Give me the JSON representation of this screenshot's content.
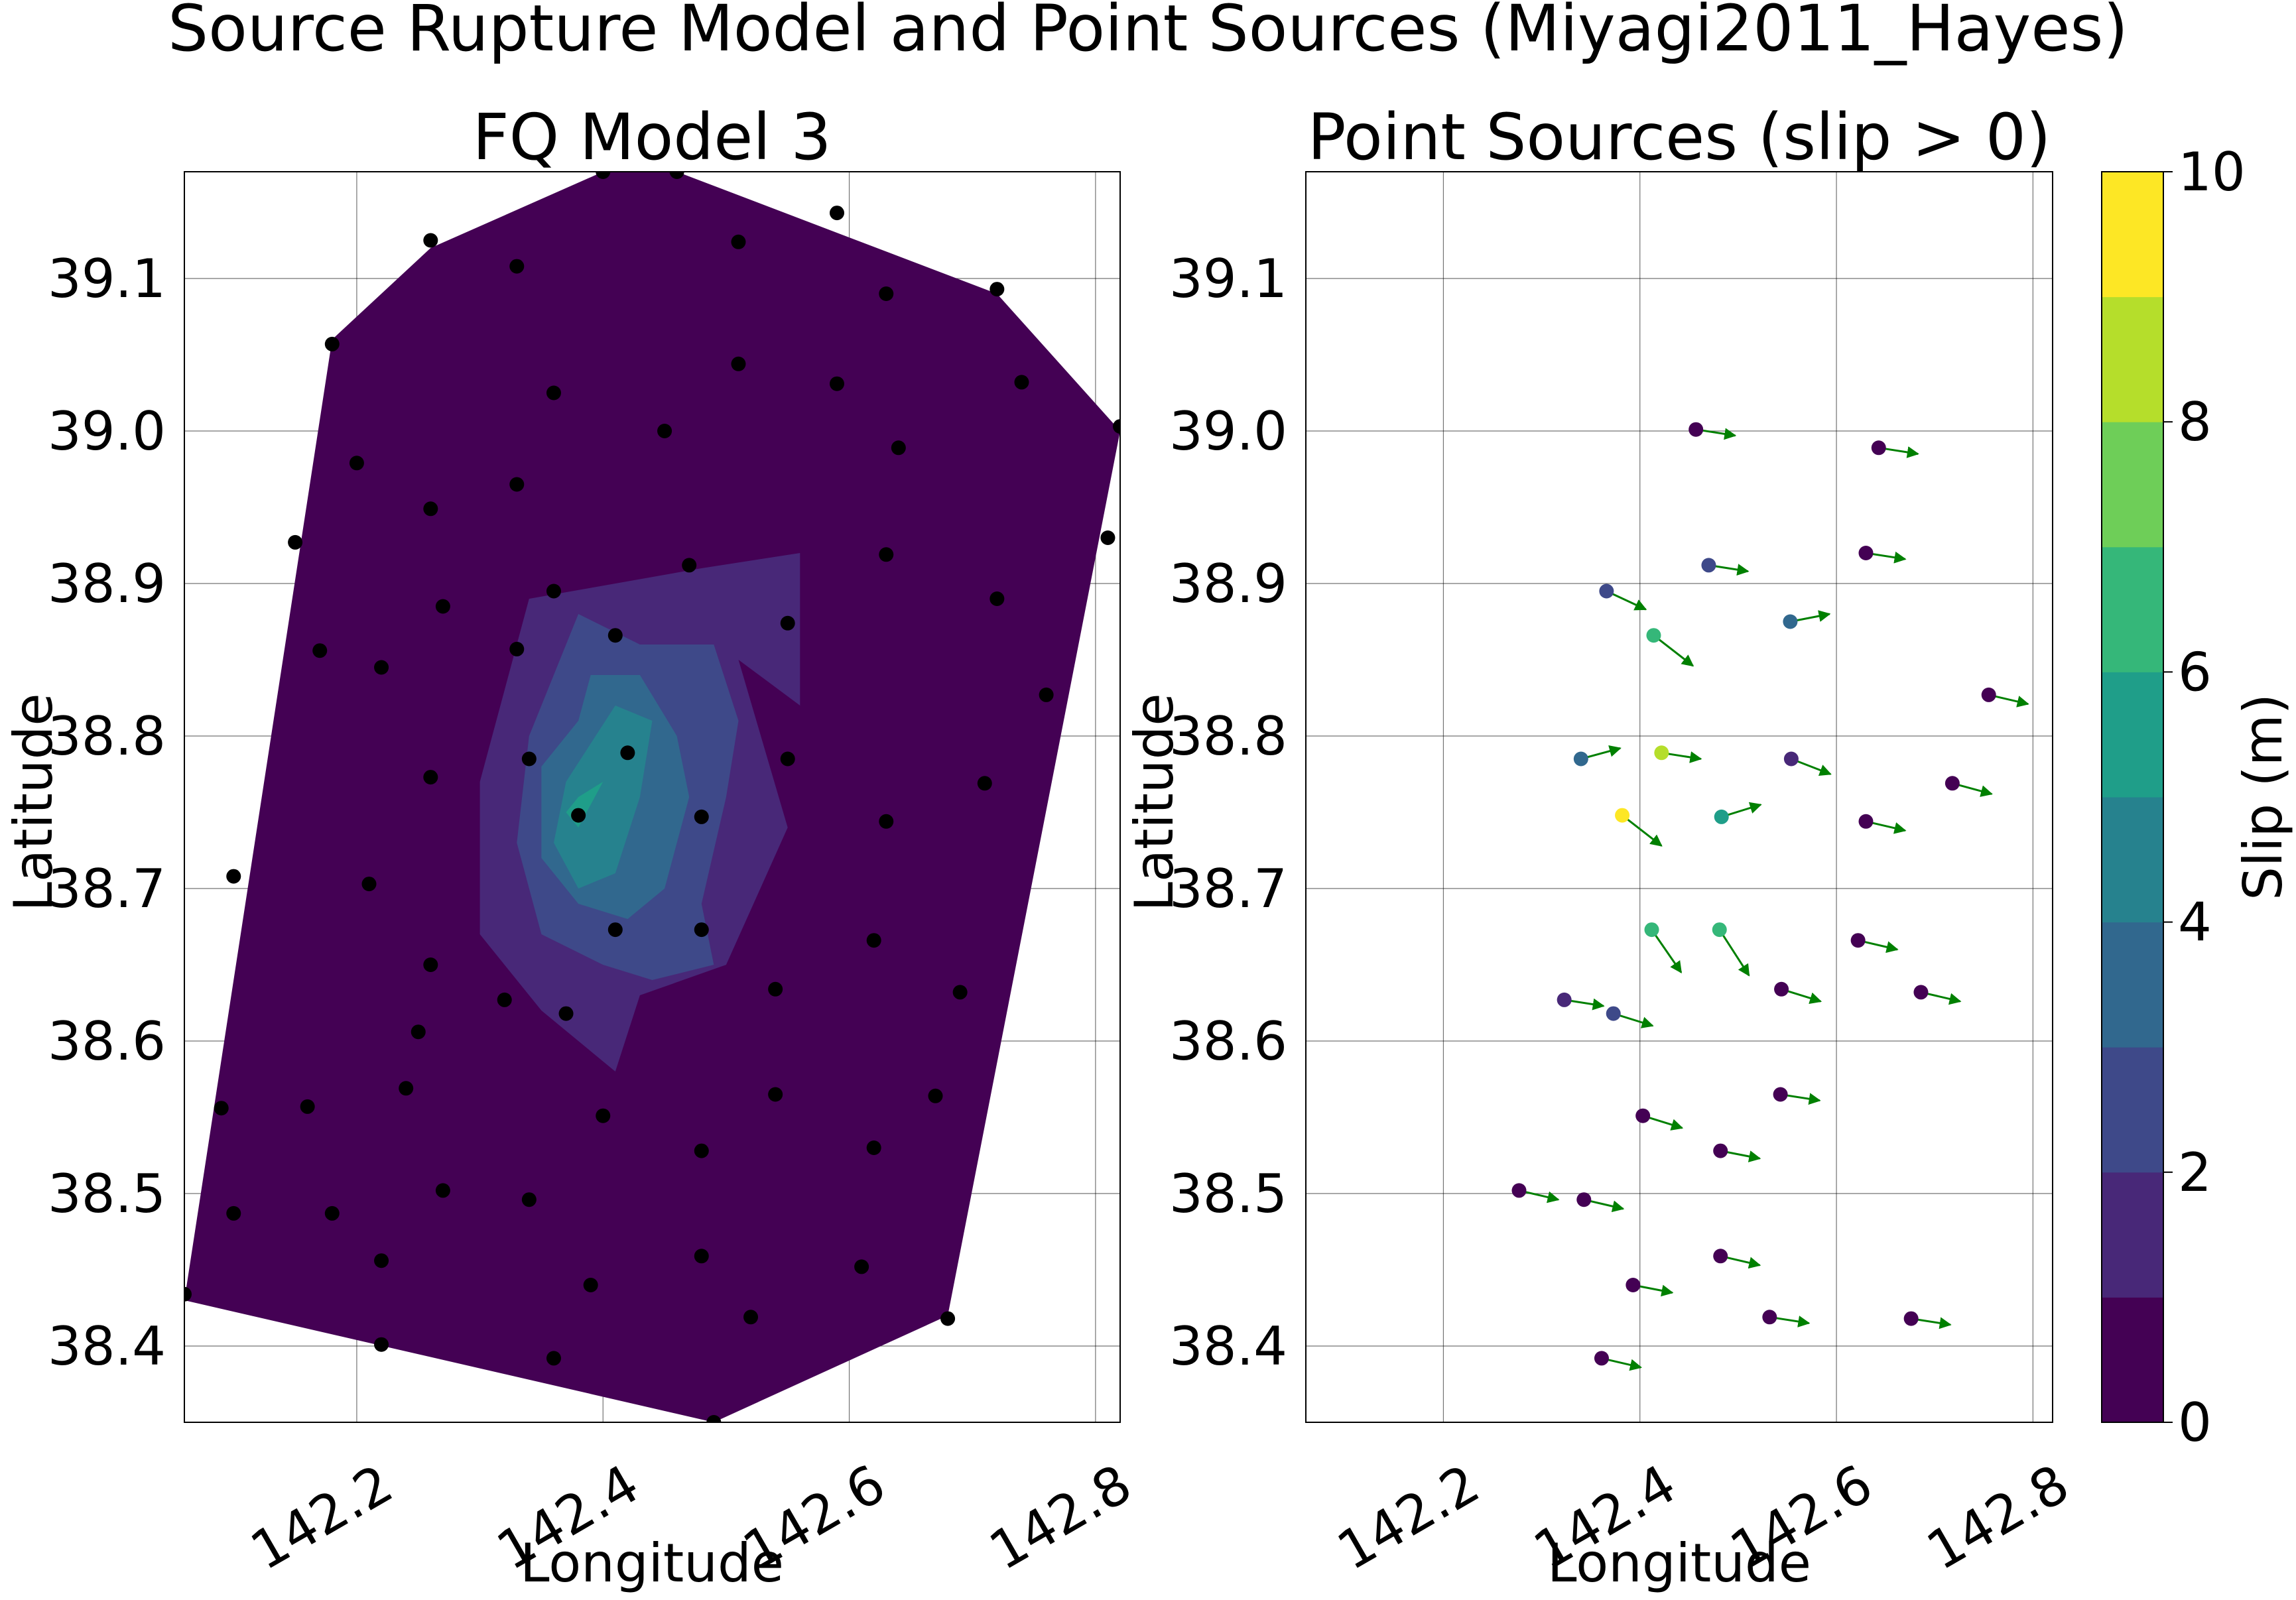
{
  "figure": {
    "suptitle": "Source Rupture Model and Point Sources (Miyagi2011_Hayes)"
  },
  "colors": {
    "viridis_levels": [
      "#440154",
      "#482878",
      "#3e4989",
      "#31688e",
      "#26828e",
      "#1f9e89",
      "#35b779",
      "#6ece58",
      "#b5de2b",
      "#fde725"
    ],
    "subfault_marker": "#000000",
    "arrow": "#008000",
    "grid": "#000000"
  },
  "chart_data": [
    {
      "type": "contour",
      "title": "FQ Model 3",
      "xlabel": "Longitude",
      "ylabel": "Latitude",
      "xlim": [
        142.06,
        142.82
      ],
      "ylim": [
        38.35,
        39.17
      ],
      "xticks": [
        "142.2",
        "142.4",
        "142.6",
        "142.8"
      ],
      "xtick_values": [
        142.2,
        142.4,
        142.6,
        142.8
      ],
      "yticks": [
        "38.4",
        "38.5",
        "38.6",
        "38.7",
        "38.8",
        "38.9",
        "39.0",
        "39.1"
      ],
      "ytick_values": [
        38.4,
        38.5,
        38.6,
        38.7,
        38.8,
        38.9,
        39.0,
        39.1
      ],
      "grid": true,
      "contour_levels": [
        0,
        1,
        2,
        3,
        4,
        5,
        6,
        7,
        8,
        9,
        10
      ],
      "contours": [
        {
          "level": 0,
          "polygon": [
            [
              142.06,
              38.43
            ],
            [
              142.18,
              39.06
            ],
            [
              142.26,
              39.12
            ],
            [
              142.4,
              39.17
            ],
            [
              142.46,
              39.17
            ],
            [
              142.72,
              39.09
            ],
            [
              142.82,
              39.0
            ],
            [
              142.68,
              38.42
            ],
            [
              142.49,
              38.35
            ]
          ]
        },
        {
          "level": 1,
          "polygon": [
            [
              142.34,
              38.89
            ],
            [
              142.48,
              38.91
            ],
            [
              142.56,
              38.92
            ],
            [
              142.56,
              38.82
            ],
            [
              142.51,
              38.85
            ],
            [
              142.55,
              38.74
            ],
            [
              142.5,
              38.65
            ],
            [
              142.43,
              38.63
            ],
            [
              142.41,
              38.58
            ],
            [
              142.35,
              38.62
            ],
            [
              142.3,
              38.67
            ],
            [
              142.3,
              38.77
            ]
          ]
        },
        {
          "level": 2,
          "polygon": [
            [
              142.38,
              38.88
            ],
            [
              142.43,
              38.86
            ],
            [
              142.49,
              38.86
            ],
            [
              142.51,
              38.81
            ],
            [
              142.5,
              38.76
            ],
            [
              142.48,
              38.69
            ],
            [
              142.49,
              38.65
            ],
            [
              142.44,
              38.64
            ],
            [
              142.4,
              38.65
            ],
            [
              142.35,
              38.67
            ],
            [
              142.33,
              38.73
            ],
            [
              142.34,
              38.8
            ]
          ]
        },
        {
          "level": 3,
          "polygon": [
            [
              142.39,
              38.84
            ],
            [
              142.43,
              38.84
            ],
            [
              142.46,
              38.8
            ],
            [
              142.47,
              38.76
            ],
            [
              142.45,
              38.7
            ],
            [
              142.42,
              38.68
            ],
            [
              142.38,
              38.69
            ],
            [
              142.35,
              38.72
            ],
            [
              142.35,
              38.78
            ],
            [
              142.38,
              38.81
            ]
          ]
        },
        {
          "level": 4,
          "polygon": [
            [
              142.41,
              38.82
            ],
            [
              142.44,
              38.81
            ],
            [
              142.43,
              38.76
            ],
            [
              142.41,
              38.71
            ],
            [
              142.38,
              38.7
            ],
            [
              142.36,
              38.73
            ],
            [
              142.37,
              38.77
            ]
          ]
        },
        {
          "level": 5,
          "polygon": [
            [
              142.4,
              38.77
            ],
            [
              142.38,
              38.74
            ],
            [
              142.37,
              38.75
            ],
            [
              142.38,
              38.76
            ]
          ]
        }
      ],
      "subfaults": [
        [
          142.26,
          39.125
        ],
        [
          142.33,
          39.108
        ],
        [
          142.51,
          39.124
        ],
        [
          142.59,
          39.143
        ],
        [
          142.63,
          39.09
        ],
        [
          142.72,
          39.093
        ],
        [
          142.18,
          39.057
        ],
        [
          142.36,
          39.025
        ],
        [
          142.51,
          39.044
        ],
        [
          142.59,
          39.031
        ],
        [
          142.74,
          39.032
        ],
        [
          142.2,
          38.979
        ],
        [
          142.45,
          39.0
        ],
        [
          142.64,
          38.989
        ],
        [
          142.82,
          39.003
        ],
        [
          142.26,
          38.949
        ],
        [
          142.33,
          38.965
        ],
        [
          142.15,
          38.927
        ],
        [
          142.47,
          38.912
        ],
        [
          142.63,
          38.919
        ],
        [
          142.81,
          38.93
        ],
        [
          142.27,
          38.885
        ],
        [
          142.36,
          38.895
        ],
        [
          142.55,
          38.874
        ],
        [
          142.72,
          38.89
        ],
        [
          142.17,
          38.856
        ],
        [
          142.22,
          38.845
        ],
        [
          142.33,
          38.857
        ],
        [
          142.41,
          38.866
        ],
        [
          142.76,
          38.827
        ],
        [
          142.34,
          38.785
        ],
        [
          142.42,
          38.789
        ],
        [
          142.26,
          38.773
        ],
        [
          142.55,
          38.785
        ],
        [
          142.71,
          38.769
        ],
        [
          142.38,
          38.748
        ],
        [
          142.48,
          38.747
        ],
        [
          142.63,
          38.744
        ],
        [
          142.1,
          38.708
        ],
        [
          142.21,
          38.703
        ],
        [
          142.41,
          38.673
        ],
        [
          142.48,
          38.673
        ],
        [
          142.26,
          38.65
        ],
        [
          142.62,
          38.666
        ],
        [
          142.32,
          38.627
        ],
        [
          142.37,
          38.618
        ],
        [
          142.54,
          38.634
        ],
        [
          142.69,
          38.632
        ],
        [
          142.25,
          38.606
        ],
        [
          142.09,
          38.556
        ],
        [
          142.16,
          38.557
        ],
        [
          142.24,
          38.569
        ],
        [
          142.4,
          38.551
        ],
        [
          142.54,
          38.565
        ],
        [
          142.67,
          38.564
        ],
        [
          142.27,
          38.502
        ],
        [
          142.34,
          38.496
        ],
        [
          142.48,
          38.528
        ],
        [
          142.62,
          38.53
        ],
        [
          142.1,
          38.487
        ],
        [
          142.18,
          38.487
        ],
        [
          142.22,
          38.456
        ],
        [
          142.48,
          38.459
        ],
        [
          142.61,
          38.452
        ],
        [
          142.39,
          38.44
        ],
        [
          142.52,
          38.419
        ],
        [
          142.68,
          38.418
        ],
        [
          142.06,
          38.434
        ],
        [
          142.22,
          38.401
        ],
        [
          142.36,
          38.392
        ],
        [
          142.49,
          38.35
        ],
        [
          142.4,
          39.17
        ],
        [
          142.46,
          39.17
        ]
      ]
    },
    {
      "type": "scatter",
      "title": "Point Sources (slip > 0)",
      "xlabel": "Longitude",
      "ylabel": "Latitude",
      "xlim": [
        142.06,
        142.82
      ],
      "ylim": [
        38.35,
        39.17
      ],
      "xticks": [
        "142.2",
        "142.4",
        "142.6",
        "142.8"
      ],
      "xtick_values": [
        142.2,
        142.4,
        142.6,
        142.8
      ],
      "yticks": [
        "38.4",
        "38.5",
        "38.6",
        "38.7",
        "38.8",
        "38.9",
        "39.0",
        "39.1"
      ],
      "ytick_values": [
        38.4,
        38.5,
        38.6,
        38.7,
        38.8,
        38.9,
        39.0,
        39.1
      ],
      "grid": true,
      "colorbar": {
        "label": "Slip (m)",
        "ticks": [
          "0",
          "2",
          "4",
          "6",
          "8",
          "10"
        ],
        "tick_values": [
          0,
          2,
          4,
          6,
          8,
          10
        ],
        "range": [
          0,
          10
        ]
      },
      "points": [
        {
          "lon": 142.457,
          "lat": 39.001,
          "slip": 0.5,
          "dlon": 0.04,
          "dlat": -0.004
        },
        {
          "lon": 142.643,
          "lat": 38.989,
          "slip": 0.5,
          "dlon": 0.04,
          "dlat": -0.004
        },
        {
          "lon": 142.47,
          "lat": 38.912,
          "slip": 2.5,
          "dlon": 0.04,
          "dlat": -0.004
        },
        {
          "lon": 142.63,
          "lat": 38.92,
          "slip": 0.5,
          "dlon": 0.04,
          "dlat": -0.004
        },
        {
          "lon": 142.366,
          "lat": 38.895,
          "slip": 2.5,
          "dlon": 0.04,
          "dlat": -0.012
        },
        {
          "lon": 142.553,
          "lat": 38.875,
          "slip": 3.5,
          "dlon": 0.04,
          "dlat": 0.005
        },
        {
          "lon": 142.414,
          "lat": 38.866,
          "slip": 6.5,
          "dlon": 0.04,
          "dlat": -0.02
        },
        {
          "lon": 142.755,
          "lat": 38.827,
          "slip": 0.5,
          "dlon": 0.04,
          "dlat": -0.006
        },
        {
          "lon": 142.34,
          "lat": 38.785,
          "slip": 3.5,
          "dlon": 0.04,
          "dlat": 0.007
        },
        {
          "lon": 142.422,
          "lat": 38.789,
          "slip": 8.5,
          "dlon": 0.04,
          "dlat": -0.004
        },
        {
          "lon": 142.554,
          "lat": 38.785,
          "slip": 1.5,
          "dlon": 0.04,
          "dlat": -0.01
        },
        {
          "lon": 142.718,
          "lat": 38.769,
          "slip": 0.5,
          "dlon": 0.04,
          "dlat": -0.007
        },
        {
          "lon": 142.382,
          "lat": 38.748,
          "slip": 9.5,
          "dlon": 0.04,
          "dlat": -0.02
        },
        {
          "lon": 142.483,
          "lat": 38.747,
          "slip": 5.5,
          "dlon": 0.04,
          "dlat": 0.008
        },
        {
          "lon": 142.63,
          "lat": 38.744,
          "slip": 0.5,
          "dlon": 0.04,
          "dlat": -0.006
        },
        {
          "lon": 142.412,
          "lat": 38.673,
          "slip": 6.5,
          "dlon": 0.03,
          "dlat": -0.028
        },
        {
          "lon": 142.481,
          "lat": 38.673,
          "slip": 6.5,
          "dlon": 0.03,
          "dlat": -0.03
        },
        {
          "lon": 142.622,
          "lat": 38.666,
          "slip": 0.5,
          "dlon": 0.04,
          "dlat": -0.006
        },
        {
          "lon": 142.323,
          "lat": 38.627,
          "slip": 1.5,
          "dlon": 0.04,
          "dlat": -0.004
        },
        {
          "lon": 142.373,
          "lat": 38.618,
          "slip": 2.5,
          "dlon": 0.04,
          "dlat": -0.008
        },
        {
          "lon": 142.544,
          "lat": 38.634,
          "slip": 0.5,
          "dlon": 0.04,
          "dlat": -0.008
        },
        {
          "lon": 142.686,
          "lat": 38.632,
          "slip": 0.5,
          "dlon": 0.04,
          "dlat": -0.006
        },
        {
          "lon": 142.403,
          "lat": 38.551,
          "slip": 0.5,
          "dlon": 0.04,
          "dlat": -0.008
        },
        {
          "lon": 142.543,
          "lat": 38.565,
          "slip": 0.5,
          "dlon": 0.04,
          "dlat": -0.004
        },
        {
          "lon": 142.482,
          "lat": 38.528,
          "slip": 0.5,
          "dlon": 0.04,
          "dlat": -0.005
        },
        {
          "lon": 142.277,
          "lat": 38.502,
          "slip": 0.5,
          "dlon": 0.04,
          "dlat": -0.006
        },
        {
          "lon": 142.343,
          "lat": 38.496,
          "slip": 0.5,
          "dlon": 0.04,
          "dlat": -0.006
        },
        {
          "lon": 142.482,
          "lat": 38.459,
          "slip": 0.5,
          "dlon": 0.04,
          "dlat": -0.006
        },
        {
          "lon": 142.393,
          "lat": 38.44,
          "slip": 0.5,
          "dlon": 0.04,
          "dlat": -0.005
        },
        {
          "lon": 142.532,
          "lat": 38.419,
          "slip": 0.5,
          "dlon": 0.04,
          "dlat": -0.004
        },
        {
          "lon": 142.676,
          "lat": 38.418,
          "slip": 0.5,
          "dlon": 0.04,
          "dlat": -0.004
        },
        {
          "lon": 142.361,
          "lat": 38.392,
          "slip": 0.5,
          "dlon": 0.04,
          "dlat": -0.006
        }
      ]
    }
  ]
}
